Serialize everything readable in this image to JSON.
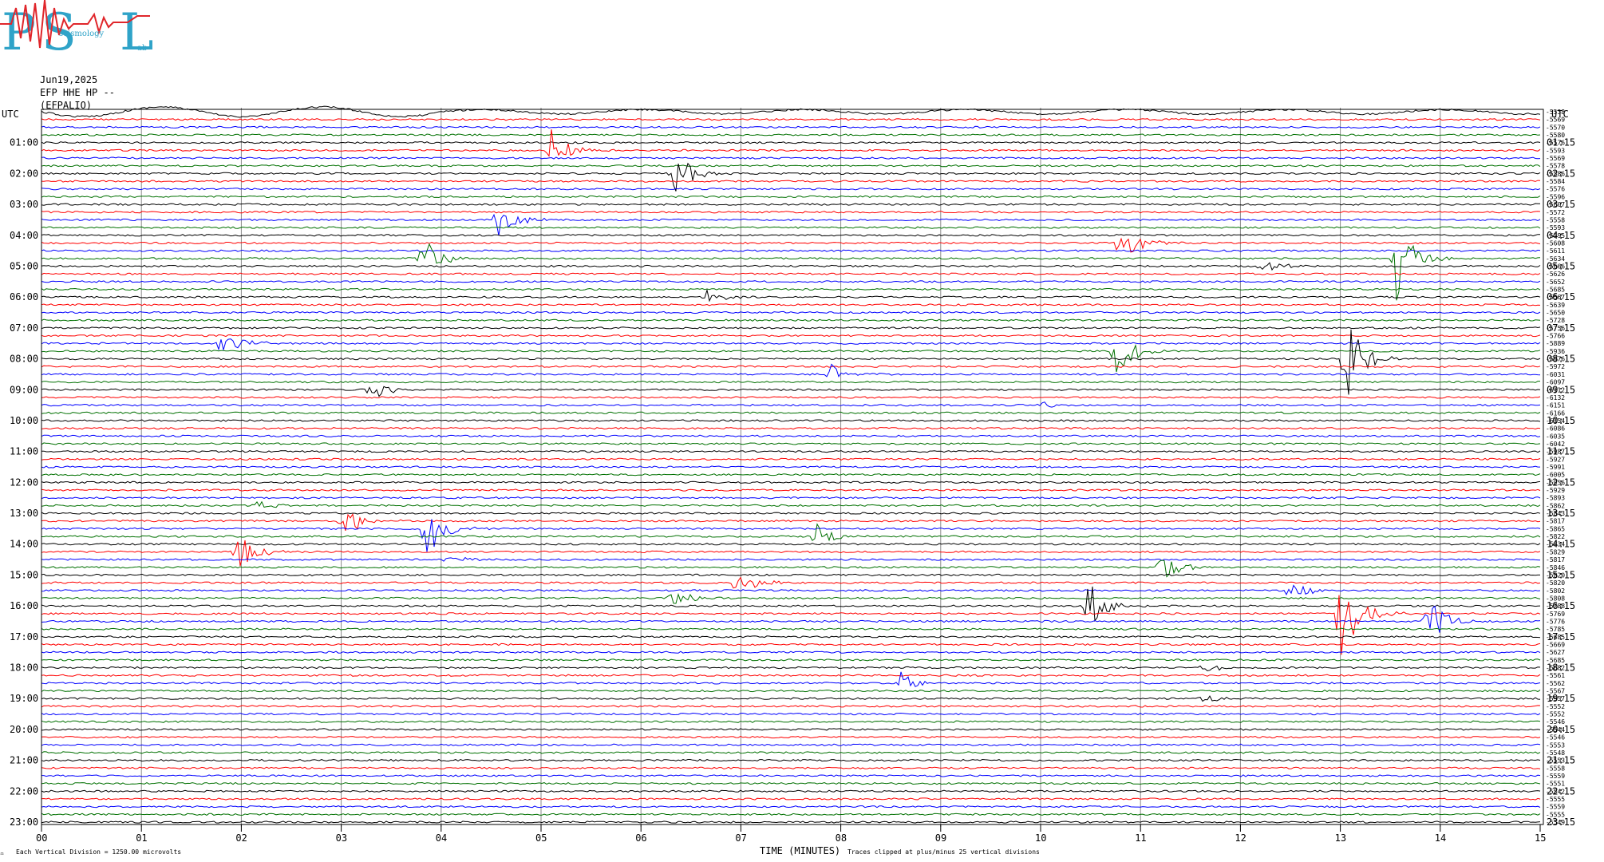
{
  "logo": {
    "letters": [
      "P",
      "S",
      "L"
    ],
    "small_words": [
      "seismology",
      "ab"
    ],
    "colors": {
      "blue": "#2fa3c8",
      "red": "#e0262b"
    }
  },
  "header": {
    "date": "Jun19,2025",
    "station": "EFP HHE HP --",
    "name": "(EFPALIO)"
  },
  "labels": {
    "utc_left": "UTC",
    "utc_right": "UTC",
    "xlabel": "TIME (MINUTES)",
    "clip_note": "Traces clipped at plus/minus 25 vertical divisions",
    "scale_note": "Each Vertical Division = 1250.00 microvolts",
    "corner_mark": "♒"
  },
  "chart_data": {
    "type": "line",
    "title": "",
    "xlabel": "TIME (MINUTES)",
    "x_ticks": [
      "00",
      "01",
      "02",
      "03",
      "04",
      "05",
      "06",
      "07",
      "08",
      "09",
      "10",
      "11",
      "12",
      "13",
      "14",
      "15"
    ],
    "xlim": [
      0,
      15
    ],
    "grid": "vertical lines each minute",
    "trace_colors": [
      "#000000",
      "#ff0000",
      "#0000ff",
      "#007000"
    ],
    "left_hour_labels": [
      "01:00",
      "02:00",
      "03:00",
      "04:00",
      "05:00",
      "06:00",
      "07:00",
      "08:00",
      "09:00",
      "10:00",
      "11:00",
      "12:00",
      "13:00",
      "14:00",
      "15:00",
      "16:00",
      "17:00",
      "18:00",
      "19:00",
      "20:00",
      "21:00",
      "22:00",
      "23:00"
    ],
    "right_hour_labels": [
      "01:15",
      "02:15",
      "03:15",
      "04:15",
      "05:15",
      "06:15",
      "07:15",
      "08:15",
      "09:15",
      "10:15",
      "11:15",
      "12:15",
      "13:15",
      "14:15",
      "15:15",
      "16:15",
      "17:15",
      "18:15",
      "19:15",
      "20:15",
      "21:15",
      "22:15",
      "23:15"
    ],
    "trace_offsets": [
      "-5538",
      "-5569",
      "-5570",
      "-5580",
      "-5576",
      "-5593",
      "-5569",
      "-5578",
      "-5586",
      "-5584",
      "-5576",
      "-5596",
      "-5607",
      "-5572",
      "-5558",
      "-5593",
      "-5595",
      "-5608",
      "-5611",
      "-5634",
      "-5666",
      "-5626",
      "-5652",
      "-5685",
      "-5567",
      "-5639",
      "-5650",
      "-5728",
      "-5756",
      "-5766",
      "-5889",
      "-5936",
      "-5976",
      "-5972",
      "-6031",
      "-6097",
      "-6112",
      "-6132",
      "-6151",
      "-6166",
      "-6154",
      "-6086",
      "-6035",
      "-6042",
      "-5987",
      "-5927",
      "-5991",
      "-6005",
      "-5956",
      "-5929",
      "-5893",
      "-5862",
      "-5843",
      "-5817",
      "-5865",
      "-5822",
      "-5834",
      "-5829",
      "-5817",
      "-5846",
      "-5820",
      "-5820",
      "-5802",
      "-5808",
      "-5788",
      "-5769",
      "-5776",
      "-5785",
      "-5685",
      "-5669",
      "-5627",
      "-5685",
      "-5682",
      "-5561",
      "-5562",
      "-5567",
      "-5557",
      "-5552",
      "-5552",
      "-5546",
      "-5544",
      "-5546",
      "-5553",
      "-5548",
      "-5553",
      "-5558",
      "-5559",
      "-5551",
      "-5542",
      "-5555",
      "-5559",
      "-5555",
      "-5549"
    ],
    "events": [
      {
        "trace": 5,
        "minute": 5.1,
        "amp": 28
      },
      {
        "trace": 8,
        "minute": 6.3,
        "amp": 40
      },
      {
        "trace": 14,
        "minute": 4.55,
        "amp": 34
      },
      {
        "trace": 17,
        "minute": 10.8,
        "amp": 30
      },
      {
        "trace": 19,
        "minute": 3.8,
        "amp": 30
      },
      {
        "trace": 19,
        "minute": 13.55,
        "amp": 60
      },
      {
        "trace": 20,
        "minute": 12.2,
        "amp": 12
      },
      {
        "trace": 24,
        "minute": 6.65,
        "amp": 12
      },
      {
        "trace": 30,
        "minute": 1.8,
        "amp": 34
      },
      {
        "trace": 31,
        "minute": 10.75,
        "amp": 36
      },
      {
        "trace": 32,
        "minute": 13.05,
        "amp": 60
      },
      {
        "trace": 34,
        "minute": 7.9,
        "amp": 14
      },
      {
        "trace": 36,
        "minute": 3.3,
        "amp": 16
      },
      {
        "trace": 38,
        "minute": 10.0,
        "amp": 6
      },
      {
        "trace": 51,
        "minute": 2.15,
        "amp": 8
      },
      {
        "trace": 53,
        "minute": 3.0,
        "amp": 30
      },
      {
        "trace": 54,
        "minute": 3.85,
        "amp": 40
      },
      {
        "trace": 55,
        "minute": 7.75,
        "amp": 20
      },
      {
        "trace": 57,
        "minute": 1.95,
        "amp": 30
      },
      {
        "trace": 58,
        "minute": 4.05,
        "amp": 8
      },
      {
        "trace": 59,
        "minute": 11.2,
        "amp": 24
      },
      {
        "trace": 61,
        "minute": 6.95,
        "amp": 24
      },
      {
        "trace": 62,
        "minute": 12.5,
        "amp": 16
      },
      {
        "trace": 63,
        "minute": 6.3,
        "amp": 18
      },
      {
        "trace": 64,
        "minute": 10.45,
        "amp": 42
      },
      {
        "trace": 65,
        "minute": 13.0,
        "amp": 80
      },
      {
        "trace": 66,
        "minute": 13.85,
        "amp": 40
      },
      {
        "trace": 72,
        "minute": 11.6,
        "amp": 8
      },
      {
        "trace": 74,
        "minute": 8.6,
        "amp": 14
      },
      {
        "trace": 76,
        "minute": 11.6,
        "amp": 8
      }
    ]
  }
}
